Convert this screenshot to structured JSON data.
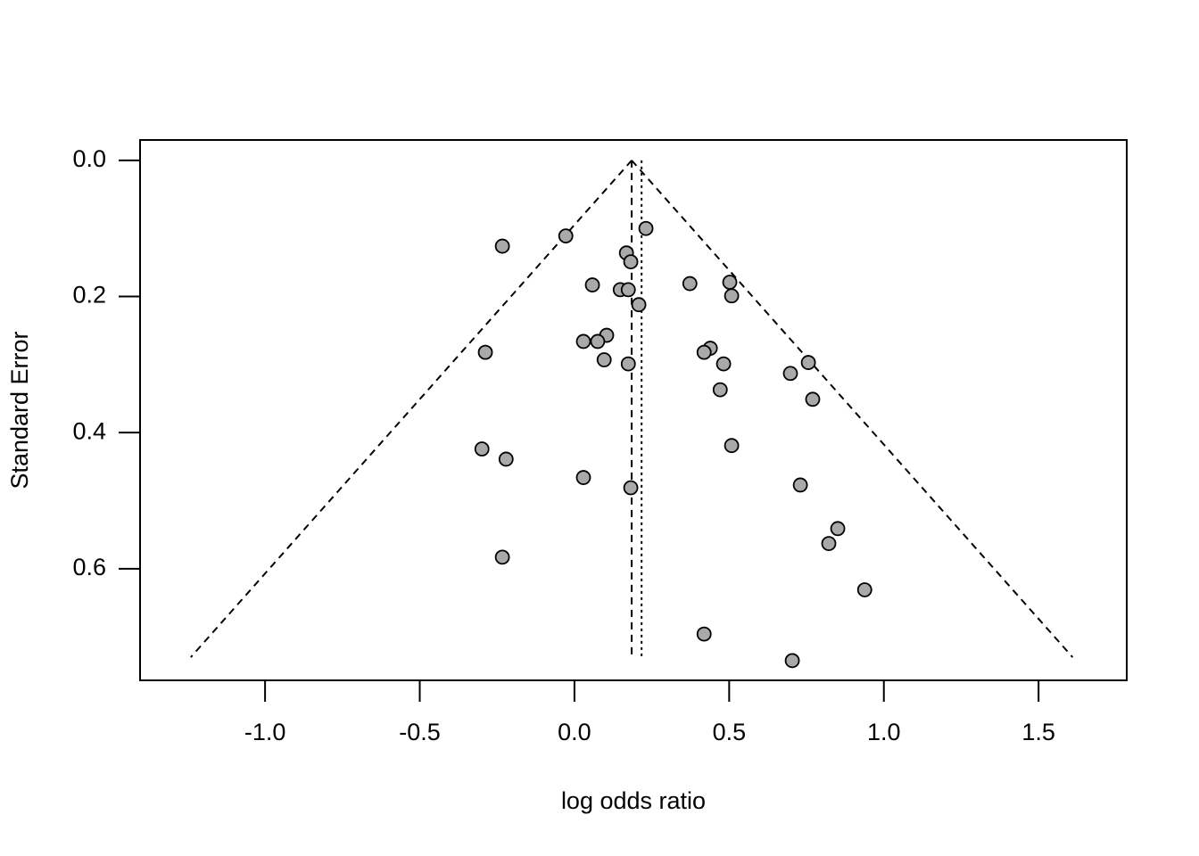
{
  "chart_data": {
    "type": "scatter",
    "xlabel": "log odds ratio",
    "ylabel": "Standard Error",
    "xlim": [
      -1.404,
      1.785
    ],
    "ylim": [
      0.764,
      -0.03
    ],
    "xticks": [
      {
        "value": -1,
        "label": "-1.0"
      },
      -0.5,
      {
        "value": 0,
        "label": "0.0"
      },
      0.5,
      {
        "value": 1,
        "label": "1.0"
      },
      1.5
    ],
    "yticks": [
      {
        "value": 0,
        "label": "0.0"
      },
      0.2,
      0.4,
      0.6
    ],
    "point_color": "#a9a9a9",
    "funnel": {
      "apex": [
        0.185,
        0
      ],
      "left": [
        -1.24,
        0.73
      ],
      "right": [
        1.61,
        0.73
      ]
    },
    "vlines": [
      {
        "x": 0.185,
        "y": [
          0,
          0.73
        ],
        "style": "dashed"
      },
      {
        "x": 0.217,
        "y": [
          0,
          0.73
        ],
        "style": "dotted"
      }
    ],
    "x": [
      0.231,
      -0.028,
      -0.233,
      0.168,
      0.182,
      0.058,
      0.148,
      0.174,
      0.373,
      0.502,
      0.508,
      0.208,
      0.104,
      0.029,
      0.075,
      -0.288,
      0.439,
      0.419,
      0.096,
      0.174,
      0.482,
      0.756,
      0.698,
      0.471,
      0.77,
      0.508,
      -0.299,
      -0.221,
      0.029,
      0.182,
      0.73,
      0.851,
      0.822,
      -0.233,
      0.938,
      0.419,
      0.704
    ],
    "values": [
      0.1,
      0.111,
      0.126,
      0.136,
      0.149,
      0.183,
      0.19,
      0.19,
      0.181,
      0.179,
      0.199,
      0.212,
      0.257,
      0.266,
      0.266,
      0.282,
      0.276,
      0.282,
      0.293,
      0.299,
      0.299,
      0.297,
      0.313,
      0.337,
      0.351,
      0.419,
      0.424,
      0.439,
      0.466,
      0.481,
      0.477,
      0.541,
      0.563,
      0.583,
      0.631,
      0.696,
      0.735
    ]
  }
}
